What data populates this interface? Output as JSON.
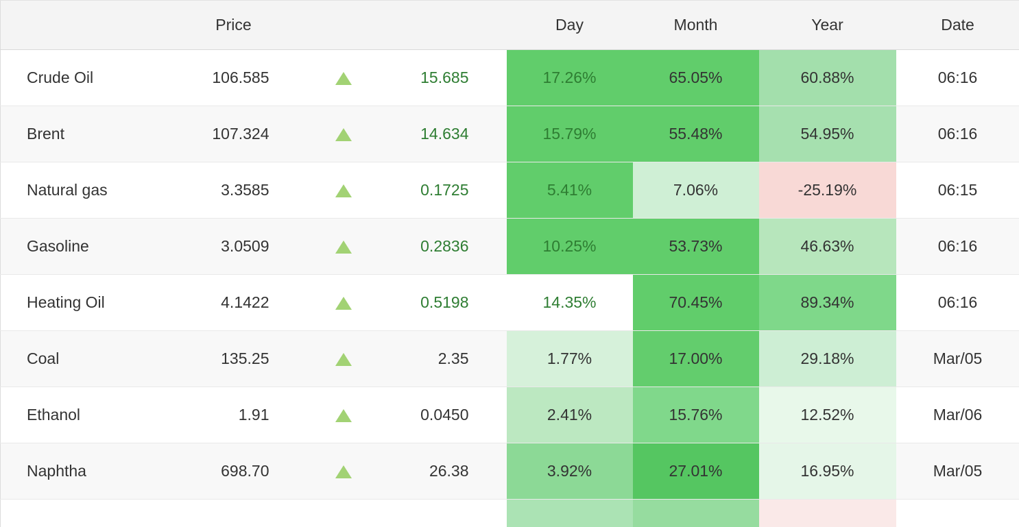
{
  "table": {
    "headers": {
      "name": "",
      "price": "Price",
      "change_arrow": "",
      "change": "",
      "day": "Day",
      "month": "Month",
      "year": "Year",
      "date": "Date"
    },
    "rows": [
      {
        "name": "Crude Oil",
        "price": "106.585",
        "change": "15.685",
        "change_fg": "#2e7d32",
        "day": "17.26%",
        "day_bg": "#61cd6b",
        "day_fg": "#2e7d32",
        "month": "65.05%",
        "month_bg": "#61cd6b",
        "year": "60.88%",
        "year_bg": "#a3dfac",
        "date": "06:16"
      },
      {
        "name": "Brent",
        "price": "107.324",
        "change": "14.634",
        "change_fg": "#2e7d32",
        "day": "15.79%",
        "day_bg": "#61cd6b",
        "day_fg": "#2e7d32",
        "month": "55.48%",
        "month_bg": "#61cd6b",
        "year": "54.95%",
        "year_bg": "#a6e0af",
        "date": "06:16"
      },
      {
        "name": "Natural gas",
        "price": "3.3585",
        "change": "0.1725",
        "change_fg": "#2e7d32",
        "day": "5.41%",
        "day_bg": "#61cd6b",
        "day_fg": "#2e7d32",
        "month": "7.06%",
        "month_bg": "#cfefd5",
        "year": "-25.19%",
        "year_bg": "#f8d9d6",
        "date": "06:15"
      },
      {
        "name": "Gasoline",
        "price": "3.0509",
        "change": "0.2836",
        "change_fg": "#2e7d32",
        "day": "10.25%",
        "day_bg": "#61cd6b",
        "day_fg": "#2e7d32",
        "month": "53.73%",
        "month_bg": "#61cd6b",
        "year": "46.63%",
        "year_bg": "#b7e6bc",
        "date": "06:16"
      },
      {
        "name": "Heating Oil",
        "price": "4.1422",
        "change": "0.5198",
        "change_fg": "#2e7d32",
        "day": "14.35%",
        "day_bg": "transparent",
        "day_fg": "#2e7d32",
        "month": "70.45%",
        "month_bg": "#61cd6b",
        "year": "89.34%",
        "year_bg": "#7fd88a",
        "date": "06:16"
      },
      {
        "name": "Coal",
        "price": "135.25",
        "change": "2.35",
        "change_fg": "#333333",
        "day": "1.77%",
        "day_bg": "#d6f1da",
        "day_fg": "#333333",
        "month": "17.00%",
        "month_bg": "#63cd6d",
        "year": "29.18%",
        "year_bg": "#cdeed4",
        "date": "Mar/05"
      },
      {
        "name": "Ethanol",
        "price": "1.91",
        "change": "0.0450",
        "change_fg": "#333333",
        "day": "2.41%",
        "day_bg": "#bce8c1",
        "day_fg": "#333333",
        "month": "15.76%",
        "month_bg": "#80d88b",
        "year": "12.52%",
        "year_bg": "#e8f8ea",
        "date": "Mar/06"
      },
      {
        "name": "Naphtha",
        "price": "698.70",
        "change": "26.38",
        "change_fg": "#333333",
        "day": "3.92%",
        "day_bg": "#8cd996",
        "day_fg": "#333333",
        "month": "27.01%",
        "month_bg": "#55c661",
        "year": "16.95%",
        "year_bg": "#e5f6e8",
        "date": "Mar/05"
      },
      {
        "name": "",
        "price": "",
        "change": "",
        "change_fg": "#333333",
        "day": "",
        "day_bg": "#abe3b4",
        "day_fg": "#333333",
        "month": "",
        "month_bg": "#96dc9f",
        "year": "",
        "year_bg": "#fae9e8",
        "date": ""
      }
    ]
  },
  "colors": {
    "heat_strong_green": "#61cd6b",
    "heat_light_green": "#a3dfac",
    "heat_pale_green": "#cfefd5",
    "heat_pink_negative": "#f8d9d6",
    "positive_text_green": "#2e7d32",
    "triangle_green": "#a2d274",
    "header_bg": "#f4f4f4",
    "stripe_bg": "#f8f8f8",
    "text": "#333333"
  }
}
